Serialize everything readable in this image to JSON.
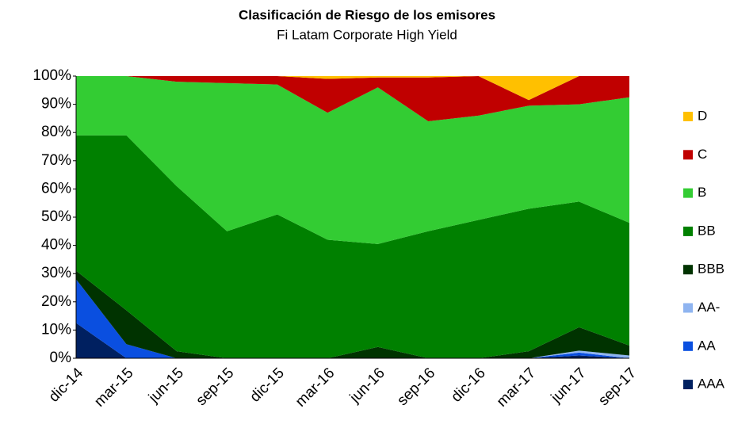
{
  "chart_data": {
    "type": "stacked_area",
    "title": "Clasificación de Riesgo de los emisores",
    "subtitle": "Fi Latam Corporate High Yield",
    "categories": [
      "dic-14",
      "mar-15",
      "jun-15",
      "sep-15",
      "dic-15",
      "mar-16",
      "jun-16",
      "sep-16",
      "dic-16",
      "mar-17",
      "jun-17",
      "sep-17"
    ],
    "series": [
      {
        "name": "AAA",
        "color": "#002060",
        "values": [
          12.5,
          0,
          0,
          0,
          0,
          0,
          0,
          0,
          0,
          0,
          1,
          0
        ]
      },
      {
        "name": "AA",
        "color": "#0a4fe0",
        "values": [
          15.5,
          5,
          0,
          0,
          0,
          0,
          0,
          0,
          0,
          0,
          1,
          0
        ]
      },
      {
        "name": "AA-",
        "color": "#8fb4f0",
        "values": [
          0,
          0,
          0,
          0,
          0,
          0,
          0,
          0,
          0,
          0,
          0.7,
          1
        ]
      },
      {
        "name": "BBB",
        "color": "#003300",
        "values": [
          3,
          12,
          2.5,
          0,
          0,
          0,
          4,
          0,
          0,
          2.5,
          8.3,
          3.5
        ]
      },
      {
        "name": "BB",
        "color": "#008000",
        "values": [
          48,
          62,
          58.5,
          45,
          51,
          42,
          36.5,
          45,
          49,
          50.5,
          44.5,
          43.5
        ]
      },
      {
        "name": "B",
        "color": "#33cc33",
        "values": [
          21,
          21,
          37,
          52.5,
          46,
          45,
          55.5,
          39,
          37,
          36.5,
          34.5,
          44.5
        ]
      },
      {
        "name": "C",
        "color": "#c00000",
        "values": [
          0,
          0,
          2,
          2.5,
          3,
          12,
          3.5,
          15.5,
          14,
          2,
          10,
          7.5
        ]
      },
      {
        "name": "D",
        "color": "#ffc000",
        "values": [
          0,
          0,
          0,
          0,
          0,
          1,
          0.5,
          0.5,
          0,
          8.5,
          0,
          0
        ]
      }
    ],
    "ylim": [
      0,
      100
    ],
    "yticks": [
      {
        "value": 0,
        "label": "0%"
      },
      {
        "value": 10,
        "label": "10%"
      },
      {
        "value": 20,
        "label": "20%"
      },
      {
        "value": 30,
        "label": "30%"
      },
      {
        "value": 40,
        "label": "40%"
      },
      {
        "value": 50,
        "label": "50%"
      },
      {
        "value": 60,
        "label": "60%"
      },
      {
        "value": 70,
        "label": "70%"
      },
      {
        "value": 80,
        "label": "80%"
      },
      {
        "value": 90,
        "label": "90%"
      },
      {
        "value": 100,
        "label": "100%"
      }
    ],
    "legend": "right"
  }
}
